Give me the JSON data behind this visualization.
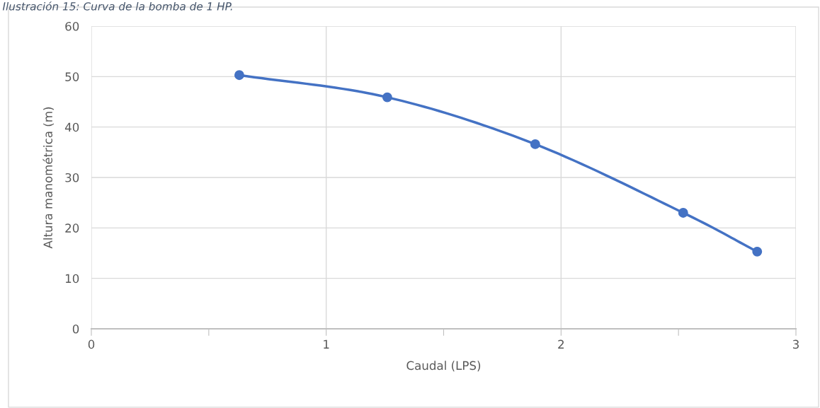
{
  "chart_data": {
    "type": "line",
    "title": "Ilustración 15: Curva de la bomba de 1 HP.",
    "xlabel": "Caudal (LPS)",
    "ylabel": "Altura manométrica (m)",
    "x": [
      0.63,
      1.26,
      1.89,
      2.52,
      2.835
    ],
    "series": [
      {
        "color": "#4472c4",
        "values": [
          50.3,
          45.9,
          36.6,
          23.0,
          15.3
        ]
      }
    ],
    "xlim": [
      0,
      3
    ],
    "xticks": [
      0,
      {
        "value": 0.5,
        "label": null
      },
      1,
      {
        "value": 1.5,
        "label": null
      },
      2,
      {
        "value": 2.5,
        "label": null
      },
      3
    ],
    "ylim": [
      0,
      60
    ],
    "yticks": [
      0,
      10,
      20,
      30,
      40,
      50,
      60
    ],
    "grid": true,
    "marker": "circle",
    "line_style": "solid",
    "legend": false
  }
}
